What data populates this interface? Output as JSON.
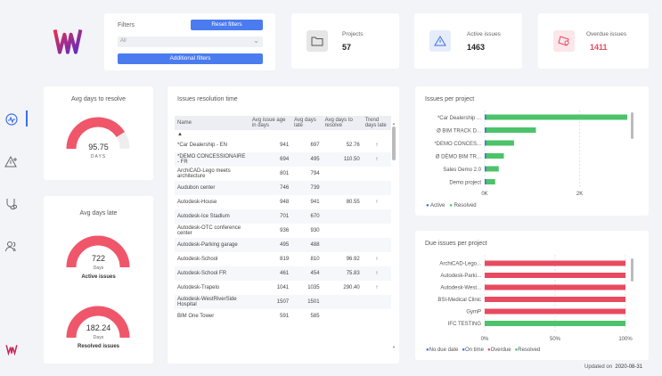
{
  "filters": {
    "label": "Filters",
    "reset_label": "Reset filters",
    "select_value": "All",
    "additional_label": "Additional filters"
  },
  "kpis": [
    {
      "label": "Projects",
      "value": "57",
      "color": "#222222"
    },
    {
      "label": "Active issues",
      "value": "1463",
      "color": "#222222"
    },
    {
      "label": "Overdue issues",
      "value": "1411",
      "color": "#e84a5f"
    }
  ],
  "avg_resolve": {
    "title": "Avg days to resolve",
    "value": "95.75",
    "unit": "DAYS",
    "fraction": 0.82
  },
  "avg_late": {
    "title": "Avg days late",
    "active": {
      "value": "722",
      "unit": "Days",
      "label": "Active issues",
      "fraction": 1
    },
    "resolved": {
      "value": "182.24",
      "unit": "Days",
      "label": "Resolved issues",
      "fraction": 1
    }
  },
  "resolution": {
    "title": "Issues resolution time",
    "headers": [
      "Name",
      "Avg issue age in days",
      "Avg days late",
      "Avg days to resolve",
      "Trend days late"
    ],
    "rows": [
      {
        "name": "*Car Dealership - EN",
        "age": "941",
        "late": "697",
        "resolve": "52.76",
        "trend": "↑"
      },
      {
        "name": "*DEMO CONCESSIONAIRE - FR",
        "age": "694",
        "late": "495",
        "resolve": "110.50",
        "trend": "↑"
      },
      {
        "name": "ArchiCAD-Lego meets architecture",
        "age": "801",
        "late": "794",
        "resolve": "",
        "trend": ""
      },
      {
        "name": "Audubon center",
        "age": "746",
        "late": "739",
        "resolve": "",
        "trend": ""
      },
      {
        "name": "Autodesk-House",
        "age": "948",
        "late": "941",
        "resolve": "80.55",
        "trend": "↑"
      },
      {
        "name": "Autodesk-Ice Stadium",
        "age": "701",
        "late": "670",
        "resolve": "",
        "trend": ""
      },
      {
        "name": "Autodesk-OTC conference center",
        "age": "936",
        "late": "930",
        "resolve": "",
        "trend": ""
      },
      {
        "name": "Autodesk-Parking garage",
        "age": "495",
        "late": "488",
        "resolve": "",
        "trend": ""
      },
      {
        "name": "Autodesk-School",
        "age": "819",
        "late": "810",
        "resolve": "96.92",
        "trend": "↑"
      },
      {
        "name": "Autodesk-School FR",
        "age": "461",
        "late": "454",
        "resolve": "75.83",
        "trend": "↑"
      },
      {
        "name": "Autodesk-Trapelo",
        "age": "1041",
        "late": "1035",
        "resolve": "290.40",
        "trend": "↑"
      },
      {
        "name": "Autodesk-WestRiverSide Hospital",
        "age": "1507",
        "late": "1501",
        "resolve": "",
        "trend": ""
      },
      {
        "name": "BIM One Tower",
        "age": "591",
        "late": "585",
        "resolve": "",
        "trend": ""
      }
    ]
  },
  "issues_per_project": {
    "title": "Issues per project",
    "legend": [
      {
        "name": "Active",
        "color": "#3a6fe8"
      },
      {
        "name": "Resolved",
        "color": "#4cc36a"
      }
    ],
    "ticks": [
      "0K",
      "2K"
    ],
    "xmax": 2800,
    "rows": [
      {
        "name": "*Car Dealership ...",
        "active": 20,
        "resolved": 2830
      },
      {
        "name": "Ø BIM TRACK D...",
        "active": 10,
        "resolved": 980
      },
      {
        "name": "*DEMO CONCES...",
        "active": 20,
        "resolved": 550
      },
      {
        "name": "Ø DÉMO BIM TR...",
        "active": 10,
        "resolved": 350
      },
      {
        "name": "Sales Demo 2.0",
        "active": 10,
        "resolved": 250
      },
      {
        "name": "Demo project",
        "active": 10,
        "resolved": 180
      }
    ]
  },
  "due_issues": {
    "title": "Due issues per project",
    "legend": [
      {
        "name": "No due date",
        "color": "#3a6fe8"
      },
      {
        "name": "On time",
        "color": "#3a6fe8"
      },
      {
        "name": "Overdue",
        "color": "#e84a5f"
      },
      {
        "name": "Resolved",
        "color": "#4cc36a"
      }
    ],
    "ticks": [
      "0%",
      "50%",
      "100%"
    ],
    "rows": [
      {
        "name": "ArchiCAD-Lego...",
        "overdue": 100,
        "resolved": 0
      },
      {
        "name": "Autodesk-Parki...",
        "overdue": 100,
        "resolved": 0
      },
      {
        "name": "Autodesk-West...",
        "overdue": 100,
        "resolved": 0
      },
      {
        "name": "BSI-Medical Clinic",
        "overdue": 100,
        "resolved": 0
      },
      {
        "name": "GymP",
        "overdue": 100,
        "resolved": 0
      },
      {
        "name": "IFC TESTING",
        "overdue": 0,
        "resolved": 100
      }
    ]
  },
  "updated": {
    "label": "Updated on",
    "date": "2020-08-31"
  }
}
